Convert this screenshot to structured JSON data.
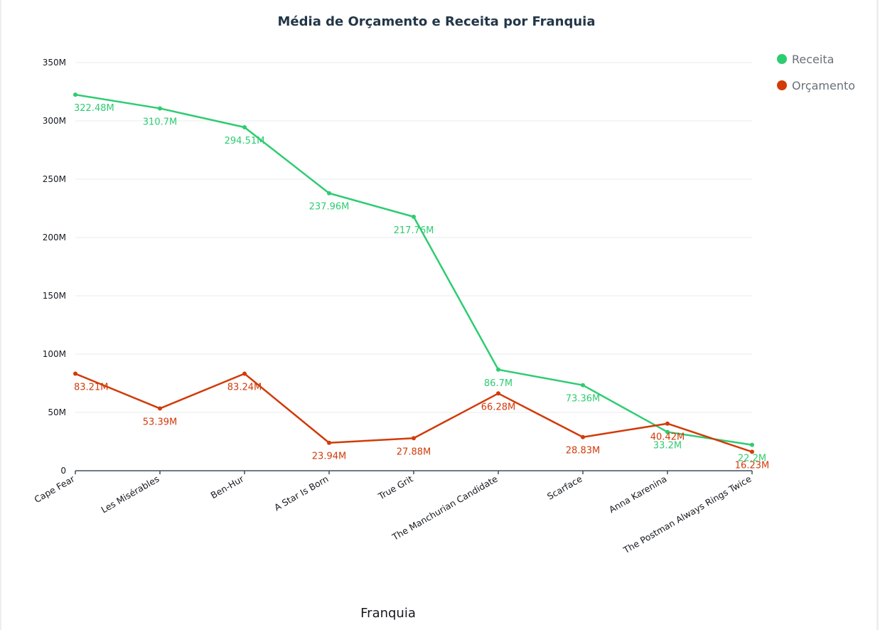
{
  "chart_data": {
    "type": "line",
    "title": "Média de Orçamento e Receita por Franquia",
    "xlabel": "Franquia",
    "ylabel": "",
    "ylim": [
      0,
      350000000
    ],
    "y_ticks": [
      "0",
      "50M",
      "100M",
      "150M",
      "200M",
      "250M",
      "300M",
      "350M"
    ],
    "y_tick_values": [
      0,
      50000000,
      100000000,
      150000000,
      200000000,
      250000000,
      300000000,
      350000000
    ],
    "categories": [
      "Cape Fear",
      "Les Misérables",
      "Ben-Hur",
      "A Star Is Born",
      "True Grit",
      "The Manchurian Candidate",
      "Scarface",
      "Anna Karenina",
      "The Postman Always Rings Twice"
    ],
    "grid": true,
    "legend_position": "top-right",
    "series": [
      {
        "name": "Receita",
        "color": "#2ecc71",
        "values": [
          322480000,
          310700000,
          294510000,
          237960000,
          217760000,
          86700000,
          73360000,
          33200000,
          22200000
        ],
        "labels": [
          "322.48M",
          "310.7M",
          "294.51M",
          "237.96M",
          "217.76M",
          "86.7M",
          "73.36M",
          "33.2M",
          "22.2M"
        ]
      },
      {
        "name": "Orçamento",
        "color": "#d13b0a",
        "values": [
          83210000,
          53390000,
          83240000,
          23940000,
          27880000,
          66280000,
          28830000,
          40420000,
          16230000
        ],
        "labels": [
          "83.21M",
          "53.39M",
          "83.24M",
          "23.94M",
          "27.88M",
          "66.28M",
          "28.83M",
          "40.42M",
          "16.23M"
        ]
      }
    ]
  }
}
